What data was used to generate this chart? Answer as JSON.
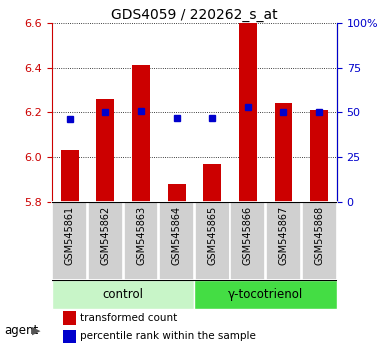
{
  "title": "GDS4059 / 220262_s_at",
  "samples": [
    "GSM545861",
    "GSM545862",
    "GSM545863",
    "GSM545864",
    "GSM545865",
    "GSM545866",
    "GSM545867",
    "GSM545868"
  ],
  "red_values": [
    6.03,
    6.26,
    6.41,
    5.88,
    5.97,
    6.6,
    6.24,
    6.21
  ],
  "blue_values": [
    46,
    50,
    51,
    47,
    47,
    53,
    50,
    50
  ],
  "ylim_left": [
    5.8,
    6.6
  ],
  "ylim_right": [
    0,
    100
  ],
  "yticks_left": [
    5.8,
    6.0,
    6.2,
    6.4,
    6.6
  ],
  "yticks_right": [
    0,
    25,
    50,
    75,
    100
  ],
  "ytick_labels_right": [
    "0",
    "25",
    "50",
    "75",
    "100%"
  ],
  "group_labels": [
    "control",
    "γ-tocotrienol"
  ],
  "group_colors_light": "#c8f5c8",
  "group_colors_dark": "#44dd44",
  "group_ranges": [
    [
      0,
      4
    ],
    [
      4,
      8
    ]
  ],
  "bar_color": "#cc0000",
  "dot_color": "#0000cc",
  "bar_bottom": 5.8,
  "agent_label": "agent",
  "legend_bar_label": "transformed count",
  "legend_dot_label": "percentile rank within the sample",
  "background_color": "#ffffff",
  "tick_label_bg": "#d0d0d0",
  "title_fontsize": 10,
  "tick_fontsize": 8,
  "label_fontsize": 8.5,
  "sample_fontsize": 7
}
